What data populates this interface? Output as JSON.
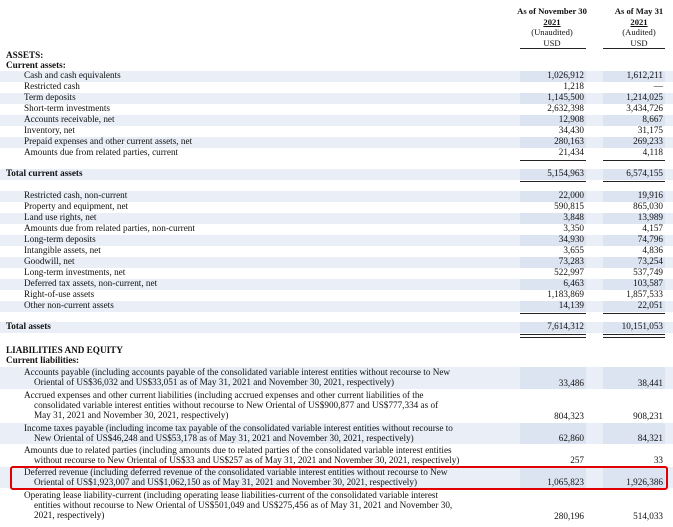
{
  "header": {
    "col1": [
      "As of November 30",
      "2021",
      "(Unaudited)",
      "USD"
    ],
    "col2": [
      "As of May 31",
      "2021",
      "(Audited)",
      "USD"
    ]
  },
  "assets": {
    "title": "ASSETS:",
    "current_title": "Current assets:",
    "current_rows": [
      {
        "label": "Cash and cash equivalents",
        "v1": "1,026,912",
        "v2": "1,612,211"
      },
      {
        "label": "Restricted cash",
        "v1": "1,218",
        "v2": "—"
      },
      {
        "label": "Term deposits",
        "v1": "1,145,500",
        "v2": "1,214,025"
      },
      {
        "label": "Short-term investments",
        "v1": "2,632,398",
        "v2": "3,434,726"
      },
      {
        "label": "Accounts receivable, net",
        "v1": "12,908",
        "v2": "8,667"
      },
      {
        "label": "Inventory, net",
        "v1": "34,430",
        "v2": "31,175"
      },
      {
        "label": "Prepaid expenses and other current assets, net",
        "v1": "280,163",
        "v2": "269,233"
      },
      {
        "label": "Amounts due from related parties, current",
        "v1": "21,434",
        "v2": "4,118"
      }
    ],
    "total_current": {
      "label": "Total current assets",
      "v1": "5,154,963",
      "v2": "6,574,155"
    },
    "noncurrent_rows": [
      {
        "label": "Restricted cash, non-current",
        "v1": "22,000",
        "v2": "19,916"
      },
      {
        "label": "Property and equipment, net",
        "v1": "590,815",
        "v2": "865,030"
      },
      {
        "label": "Land use rights, net",
        "v1": "3,848",
        "v2": "13,989"
      },
      {
        "label": "Amounts due from related parties, non-current",
        "v1": "3,350",
        "v2": "4,157"
      },
      {
        "label": "Long-term deposits",
        "v1": "34,930",
        "v2": "74,796"
      },
      {
        "label": "Intangible assets, net",
        "v1": "3,655",
        "v2": "4,836"
      },
      {
        "label": "Goodwill, net",
        "v1": "73,283",
        "v2": "73,254"
      },
      {
        "label": "Long-term investments, net",
        "v1": "522,997",
        "v2": "537,749"
      },
      {
        "label": "Deferred tax assets, non-current, net",
        "v1": "6,463",
        "v2": "103,587"
      },
      {
        "label": "Right-of-use assets",
        "v1": "1,183,869",
        "v2": "1,857,533"
      },
      {
        "label": "Other non-current assets",
        "v1": "14,139",
        "v2": "22,051"
      }
    ],
    "total": {
      "label": "Total assets",
      "v1": "7,614,312",
      "v2": "10,151,053"
    }
  },
  "liabilities": {
    "title": "LIABILITIES AND EQUITY",
    "current_title": "Current liabilities:",
    "rows": [
      {
        "line1": "Accounts payable (including accounts payable of the consolidated variable interest entities without recourse to New",
        "line2": "Oriental of US$36,032 and US$33,051 as of May 31, 2021 and November 30, 2021, respectively)",
        "line3": "",
        "v1": "33,486",
        "v2": "38,441"
      },
      {
        "line1": "Accrued expenses and other current liabilities (including accrued expenses and other current liabilities of the",
        "line2": "consolidated variable interest entities without recourse to New Oriental of US$900,877 and US$777,334 as of",
        "line3": "May 31, 2021 and November 30, 2021, respectively)",
        "v1": "804,323",
        "v2": "908,231"
      },
      {
        "line1": "Income taxes payable (including income tax payable of the consolidated variable interest entities without recourse to",
        "line2": "New Oriental of US$46,248 and US$53,178 as of May 31, 2021 and November 30, 2021, respectively)",
        "line3": "",
        "v1": "62,860",
        "v2": "84,321"
      },
      {
        "line1": "Amounts due to related parties (including amounts due to related parties of the consolidated variable interest entities",
        "line2": "without recourse to New Oriental of US$33 and US$257 as of May 31, 2021 and November 30, 2021, respectively)",
        "line3": "",
        "v1": "257",
        "v2": "33"
      },
      {
        "line1": "Deferred revenue (including deferred revenue of the consolidated variable interest entities without recourse to New",
        "line2": "Oriental of US$1,923,007 and US$1,062,150 as of May 31, 2021 and November 30, 2021, respectively)",
        "line3": "",
        "v1": "1,065,823",
        "v2": "1,926,386"
      },
      {
        "line1": "Operating lease liability-current (including operating lease liabilities-current of the consolidated variable interest",
        "line2": "entities without recourse to New Oriental of US$501,049 and US$275,456 as of May 31, 2021 and November 30,",
        "line3": "2021, respectively)",
        "v1": "280,196",
        "v2": "514,033"
      }
    ]
  },
  "colors": {
    "highlight": "#e00000",
    "shade": "#e9eef7"
  }
}
